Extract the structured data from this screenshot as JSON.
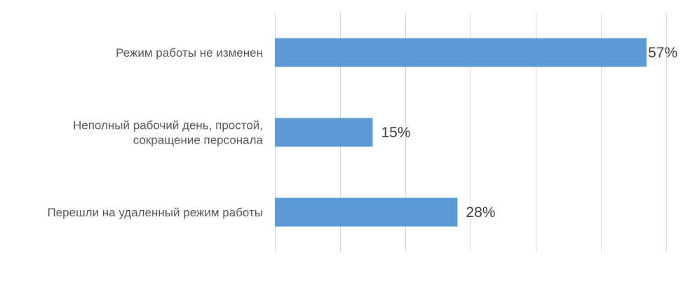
{
  "chart_data": {
    "type": "bar",
    "orientation": "horizontal",
    "categories": [
      "Режим работы не изменен",
      "Неполный рабочий день, простой, сокращение персонала",
      "Перешли на удаленный режим работы"
    ],
    "category_lines": [
      [
        "Режим работы не изменен"
      ],
      [
        "Неполный рабочий день, простой,",
        "сокращение персонала"
      ],
      [
        "Перешли на удаленный режим работы"
      ]
    ],
    "values": [
      57,
      15,
      28
    ],
    "data_labels": [
      "57%",
      "15%",
      "28%"
    ],
    "unit": "%",
    "xlim": [
      0,
      60
    ],
    "gridlines_vertical": true,
    "legend": "none",
    "bar_color": "#5b9bd5"
  }
}
